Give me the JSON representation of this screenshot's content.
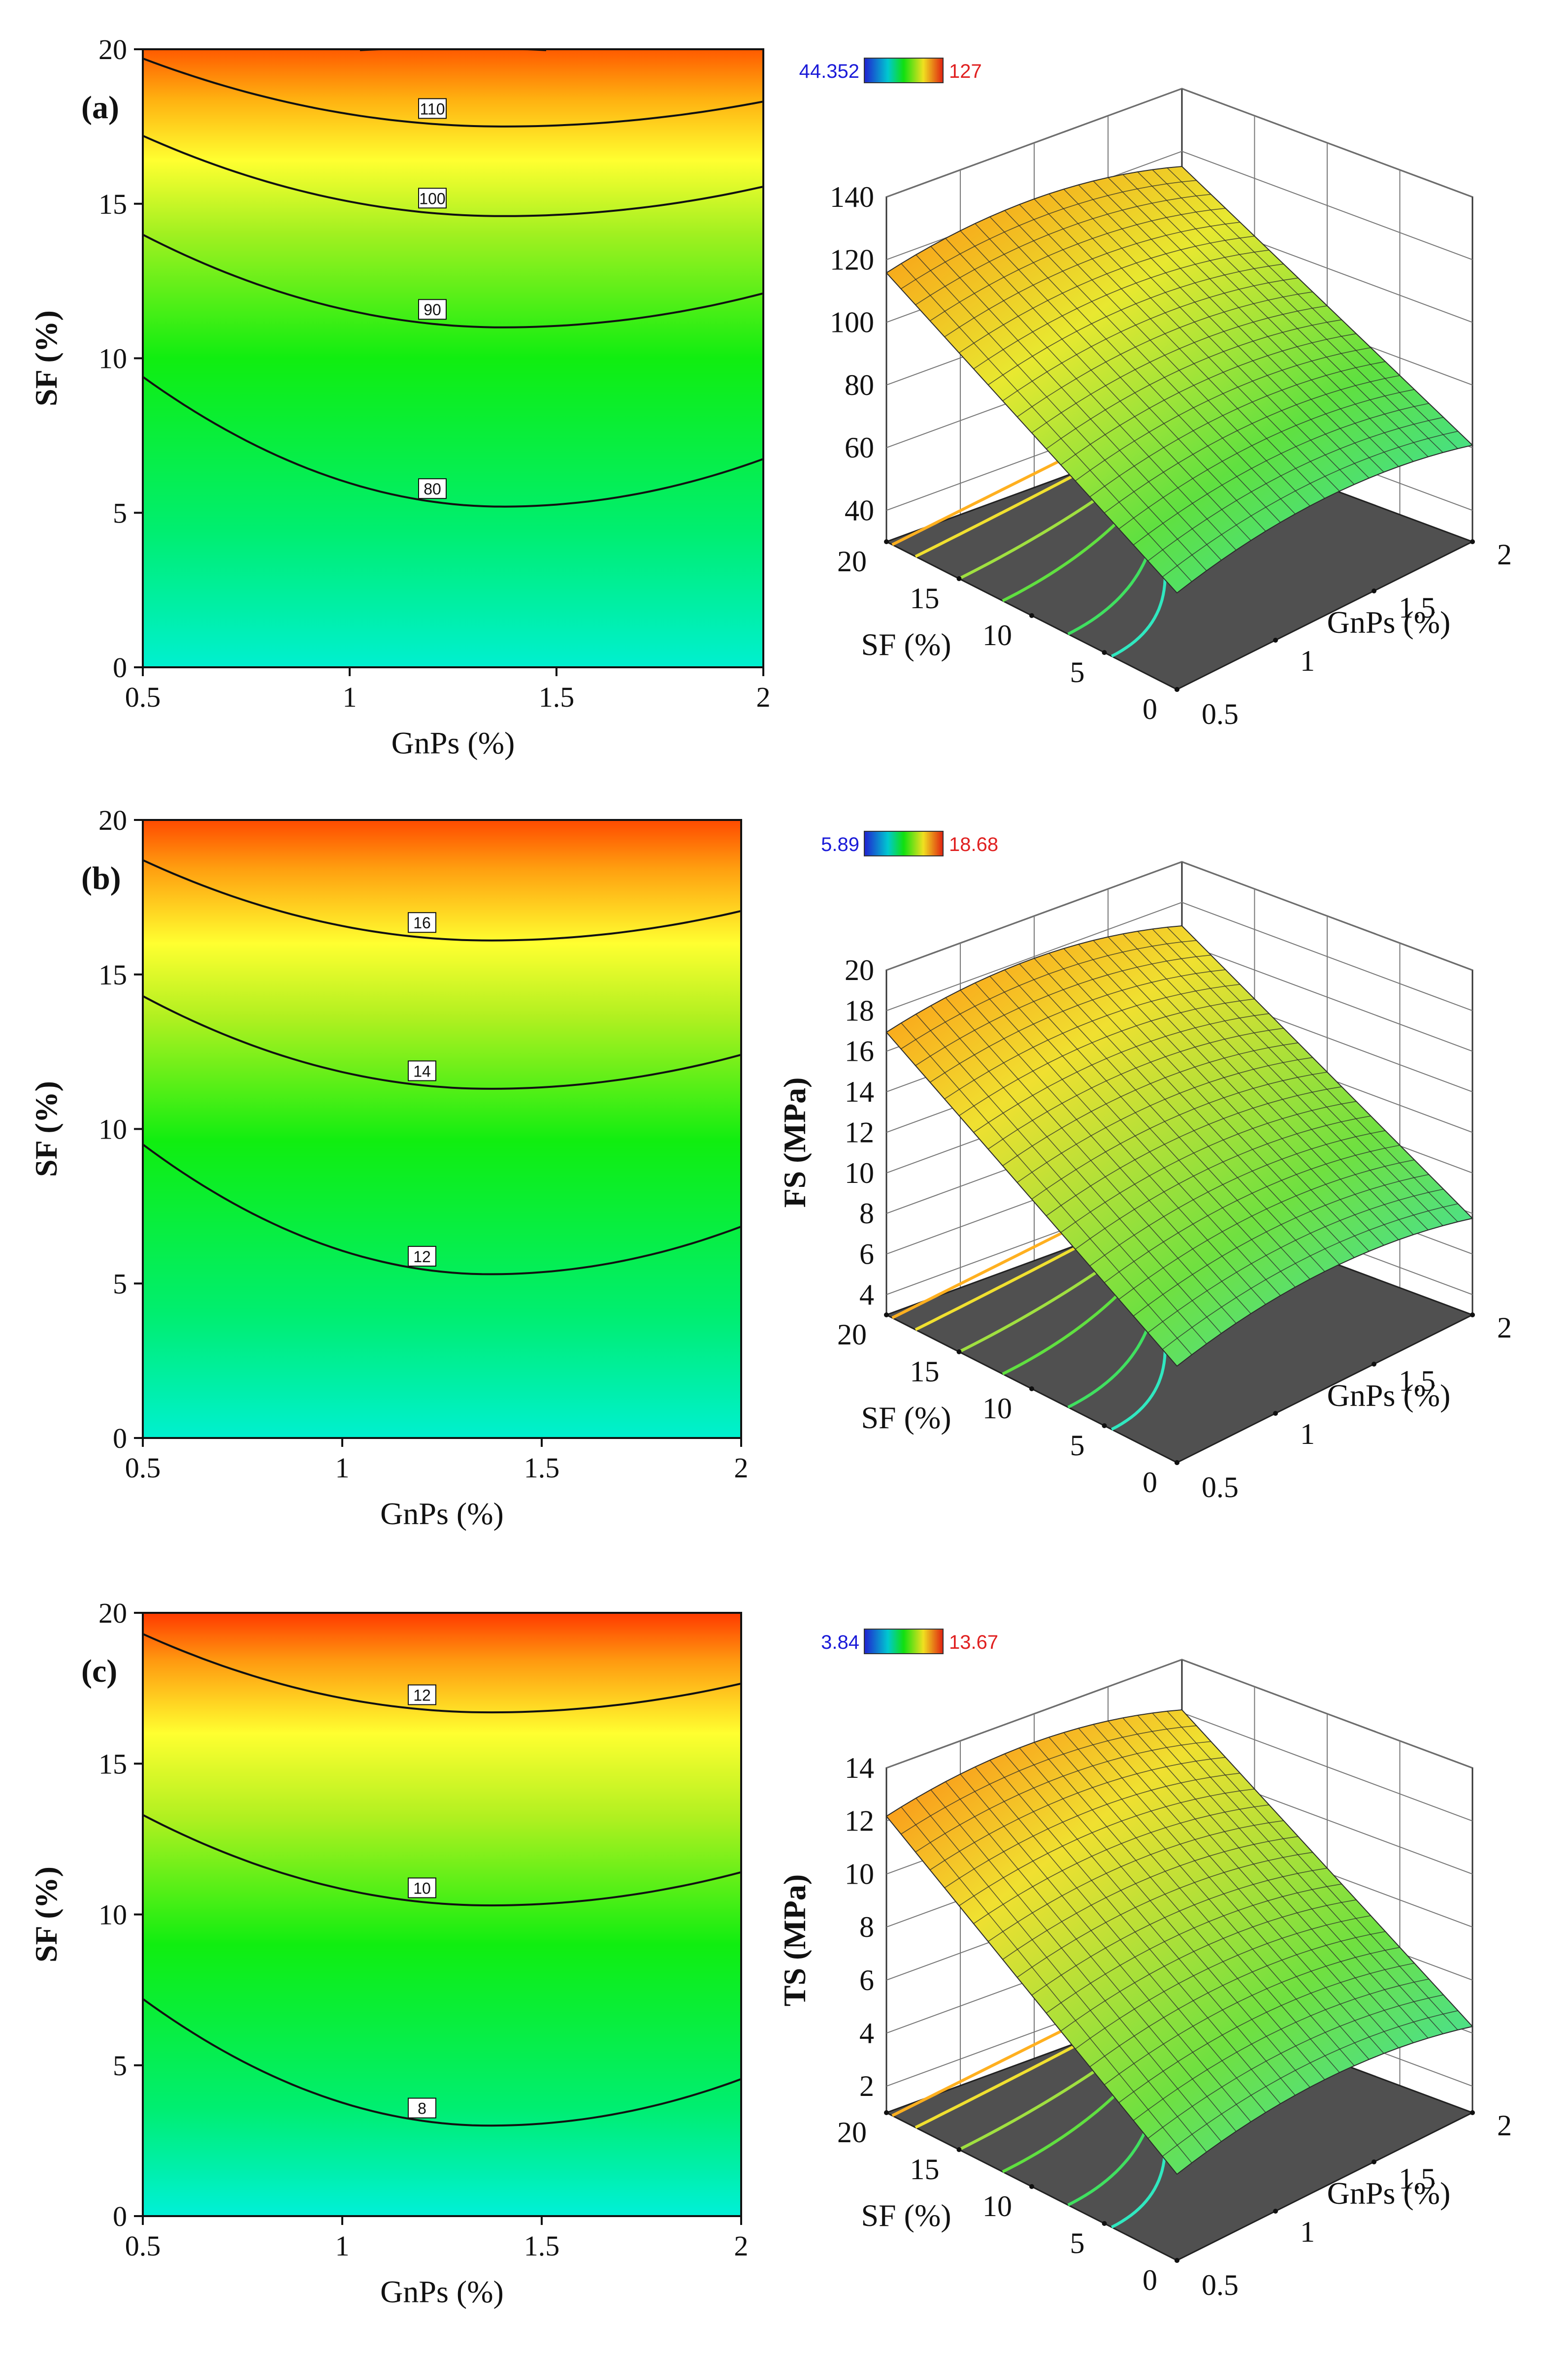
{
  "figure": {
    "type": "response-surface-figure",
    "panels": [
      "a",
      "b",
      "c"
    ]
  },
  "chart_data": [
    {
      "panel_label": "(a)",
      "type": "contour",
      "xlabel": "GnPs  (%)",
      "ylabel": "SF (%)",
      "xlim": [
        0.5,
        2
      ],
      "ylim": [
        0,
        20
      ],
      "x_ticks": [
        "0.5",
        "1",
        "1.5",
        "2"
      ],
      "y_ticks": [
        "0",
        "5",
        "10",
        "15",
        "20"
      ],
      "z_range": [
        44.352,
        127
      ],
      "contour_levels": [
        80,
        90,
        100,
        110,
        120
      ],
      "contour_labels": [
        {
          "text": "80",
          "x": 1.2,
          "y": 5.8
        },
        {
          "text": "90",
          "x": 1.2,
          "y": 11.6
        },
        {
          "text": "100",
          "x": 1.2,
          "y": 15.2
        },
        {
          "text": "110",
          "x": 1.2,
          "y": 18.1
        }
      ],
      "surface": {
        "type": "surface3d",
        "zlabel": "",
        "z_ticks": [
          "40",
          "60",
          "80",
          "100",
          "120",
          "140"
        ],
        "zlim": [
          30,
          140
        ],
        "x_ticks": [
          "0.5",
          "1",
          "1.5",
          "2"
        ],
        "y_ticks": [
          "0",
          "5",
          "10",
          "15",
          "20"
        ],
        "xlabel": "GnPs  (%)",
        "ylabel": "SF (%)",
        "colorbar_min": "44.352",
        "colorbar_max": "127"
      }
    },
    {
      "panel_label": "(b)",
      "type": "contour",
      "xlabel": "GnPs (%)",
      "ylabel": "SF (%)",
      "xlim": [
        0.5,
        2
      ],
      "ylim": [
        0,
        20
      ],
      "x_ticks": [
        "0.5",
        "1",
        "1.5",
        "2"
      ],
      "y_ticks": [
        "0",
        "5",
        "10",
        "15",
        "20"
      ],
      "z_range": [
        5.89,
        18.68
      ],
      "contour_levels": [
        12,
        14,
        16
      ],
      "contour_labels": [
        {
          "text": "12",
          "x": 1.2,
          "y": 5.9
        },
        {
          "text": "14",
          "x": 1.2,
          "y": 11.9
        },
        {
          "text": "16",
          "x": 1.2,
          "y": 16.7
        }
      ],
      "surface": {
        "type": "surface3d",
        "zlabel": "FS (MPa)",
        "z_ticks": [
          "4",
          "6",
          "8",
          "10",
          "12",
          "14",
          "16",
          "18",
          "20"
        ],
        "zlim": [
          3,
          20
        ],
        "x_ticks": [
          "0.5",
          "1",
          "1.5",
          "2"
        ],
        "y_ticks": [
          "0",
          "5",
          "10",
          "15",
          "20"
        ],
        "xlabel": "GnPs (%)",
        "ylabel": "SF (%)",
        "colorbar_min": "5.89",
        "colorbar_max": "18.68"
      }
    },
    {
      "panel_label": "(c)",
      "type": "contour",
      "xlabel": "GnPs (%)",
      "ylabel": "SF (%)",
      "xlim": [
        0.5,
        2
      ],
      "ylim": [
        0,
        20
      ],
      "x_ticks": [
        "0.5",
        "1",
        "1.5",
        "2"
      ],
      "y_ticks": [
        "0",
        "5",
        "10",
        "15",
        "20"
      ],
      "z_range": [
        3.84,
        13.67
      ],
      "contour_levels": [
        8,
        10,
        12
      ],
      "contour_labels": [
        {
          "text": "8",
          "x": 1.2,
          "y": 3.6
        },
        {
          "text": "10",
          "x": 1.2,
          "y": 10.9
        },
        {
          "text": "12",
          "x": 1.2,
          "y": 17.3
        }
      ],
      "surface": {
        "type": "surface3d",
        "zlabel": "TS (MPa)",
        "z_ticks": [
          "2",
          "4",
          "6",
          "8",
          "10",
          "12",
          "14"
        ],
        "zlim": [
          1,
          14
        ],
        "x_ticks": [
          "0.5",
          "1",
          "1.5",
          "2"
        ],
        "y_ticks": [
          "0",
          "5",
          "10",
          "15",
          "20"
        ],
        "xlabel": "GnPs (%)",
        "ylabel": "SF (%)",
        "colorbar_min": "3.84",
        "colorbar_max": "13.67"
      }
    }
  ],
  "colors": {
    "low": "#00f0d8",
    "mid": "#00f020",
    "yellow": "#ffff30",
    "orange": "#ff9a10",
    "high": "#ff3a00",
    "floor": "#505050",
    "colorbar_min_text": "#1a1ad8",
    "colorbar_max_text": "#e02020"
  }
}
